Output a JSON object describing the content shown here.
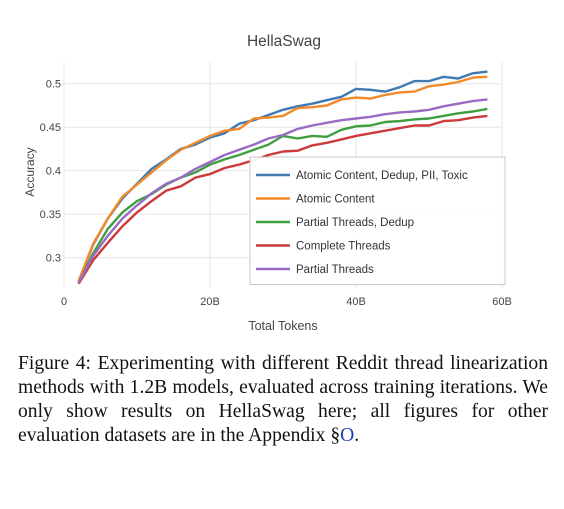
{
  "chart_data": {
    "type": "line",
    "title": "HellaSwag",
    "xlabel": "Total Tokens",
    "ylabel": "Accuracy",
    "xlim": [
      0,
      60
    ],
    "ylim": [
      0.265,
      0.525
    ],
    "x_ticks": [
      {
        "value": 0,
        "label": "0"
      },
      {
        "value": 20,
        "label": "20B"
      },
      {
        "value": 40,
        "label": "40B"
      },
      {
        "value": 60,
        "label": "60B"
      }
    ],
    "y_ticks": [
      {
        "value": 0.3,
        "label": "0.3"
      },
      {
        "value": 0.35,
        "label": "0.35"
      },
      {
        "value": 0.4,
        "label": "0.4"
      },
      {
        "value": 0.45,
        "label": "0.45"
      },
      {
        "value": 0.5,
        "label": "0.5"
      }
    ],
    "grid": true,
    "legend_position": "center-right",
    "x": [
      2,
      4,
      6,
      8,
      10,
      12,
      14,
      16,
      18,
      20,
      22,
      24,
      26,
      28,
      30,
      32,
      34,
      36,
      38,
      40,
      42,
      44,
      46,
      48,
      50,
      52,
      54,
      56,
      58,
      60
    ],
    "series": [
      {
        "name": "Atomic Content, Dedup, PII, Toxic",
        "color": "#3f7ab5",
        "values": [
          0.272,
          0.315,
          0.345,
          0.368,
          0.385,
          0.402,
          0.413,
          0.425,
          0.43,
          0.438,
          0.443,
          0.454,
          0.458,
          0.464,
          0.47,
          0.474,
          0.477,
          0.481,
          0.485,
          0.494,
          0.493,
          0.491,
          0.496,
          0.503,
          0.503,
          0.508,
          0.506,
          0.512,
          0.514,
          null
        ]
      },
      {
        "name": "Atomic Content",
        "color": "#f28a2a",
        "values": [
          0.273,
          0.316,
          0.345,
          0.37,
          0.384,
          0.398,
          0.412,
          0.424,
          0.432,
          0.44,
          0.446,
          0.448,
          0.46,
          0.461,
          0.463,
          0.472,
          0.473,
          0.475,
          0.482,
          0.484,
          0.483,
          0.487,
          0.49,
          0.491,
          0.497,
          0.499,
          0.502,
          0.507,
          0.508,
          null
        ]
      },
      {
        "name": "Partial Threads, Dedup",
        "color": "#3f9e3f",
        "values": [
          0.27,
          0.305,
          0.333,
          0.352,
          0.365,
          0.373,
          0.384,
          0.392,
          0.398,
          0.407,
          0.413,
          0.418,
          0.424,
          0.43,
          0.44,
          0.437,
          0.44,
          0.439,
          0.447,
          0.451,
          0.452,
          0.456,
          0.457,
          0.459,
          0.46,
          0.463,
          0.466,
          0.468,
          0.471,
          null
        ]
      },
      {
        "name": "Complete Threads",
        "color": "#cc3a3a",
        "values": [
          0.27,
          0.297,
          0.317,
          0.336,
          0.352,
          0.365,
          0.377,
          0.382,
          0.392,
          0.396,
          0.403,
          0.407,
          0.412,
          0.418,
          0.422,
          0.423,
          0.429,
          0.432,
          0.436,
          0.44,
          0.443,
          0.446,
          0.449,
          0.452,
          0.452,
          0.457,
          0.458,
          0.461,
          0.463,
          null
        ]
      },
      {
        "name": "Partial Threads",
        "color": "#9a6bc4",
        "values": [
          0.271,
          0.302,
          0.325,
          0.345,
          0.36,
          0.374,
          0.385,
          0.392,
          0.402,
          0.41,
          0.418,
          0.424,
          0.43,
          0.437,
          0.441,
          0.448,
          0.452,
          0.455,
          0.458,
          0.46,
          0.462,
          0.465,
          0.467,
          0.468,
          0.47,
          0.474,
          0.477,
          0.48,
          0.482,
          null
        ]
      }
    ]
  },
  "caption": {
    "text": "Figure 4: Experimenting with different Reddit thread linearization methods with 1.2B models, evaluated across training iterations. We only show results on HellaSwag here; all figures for other evaluation datasets are in the Appendix §",
    "ref": "O",
    "end": "."
  }
}
